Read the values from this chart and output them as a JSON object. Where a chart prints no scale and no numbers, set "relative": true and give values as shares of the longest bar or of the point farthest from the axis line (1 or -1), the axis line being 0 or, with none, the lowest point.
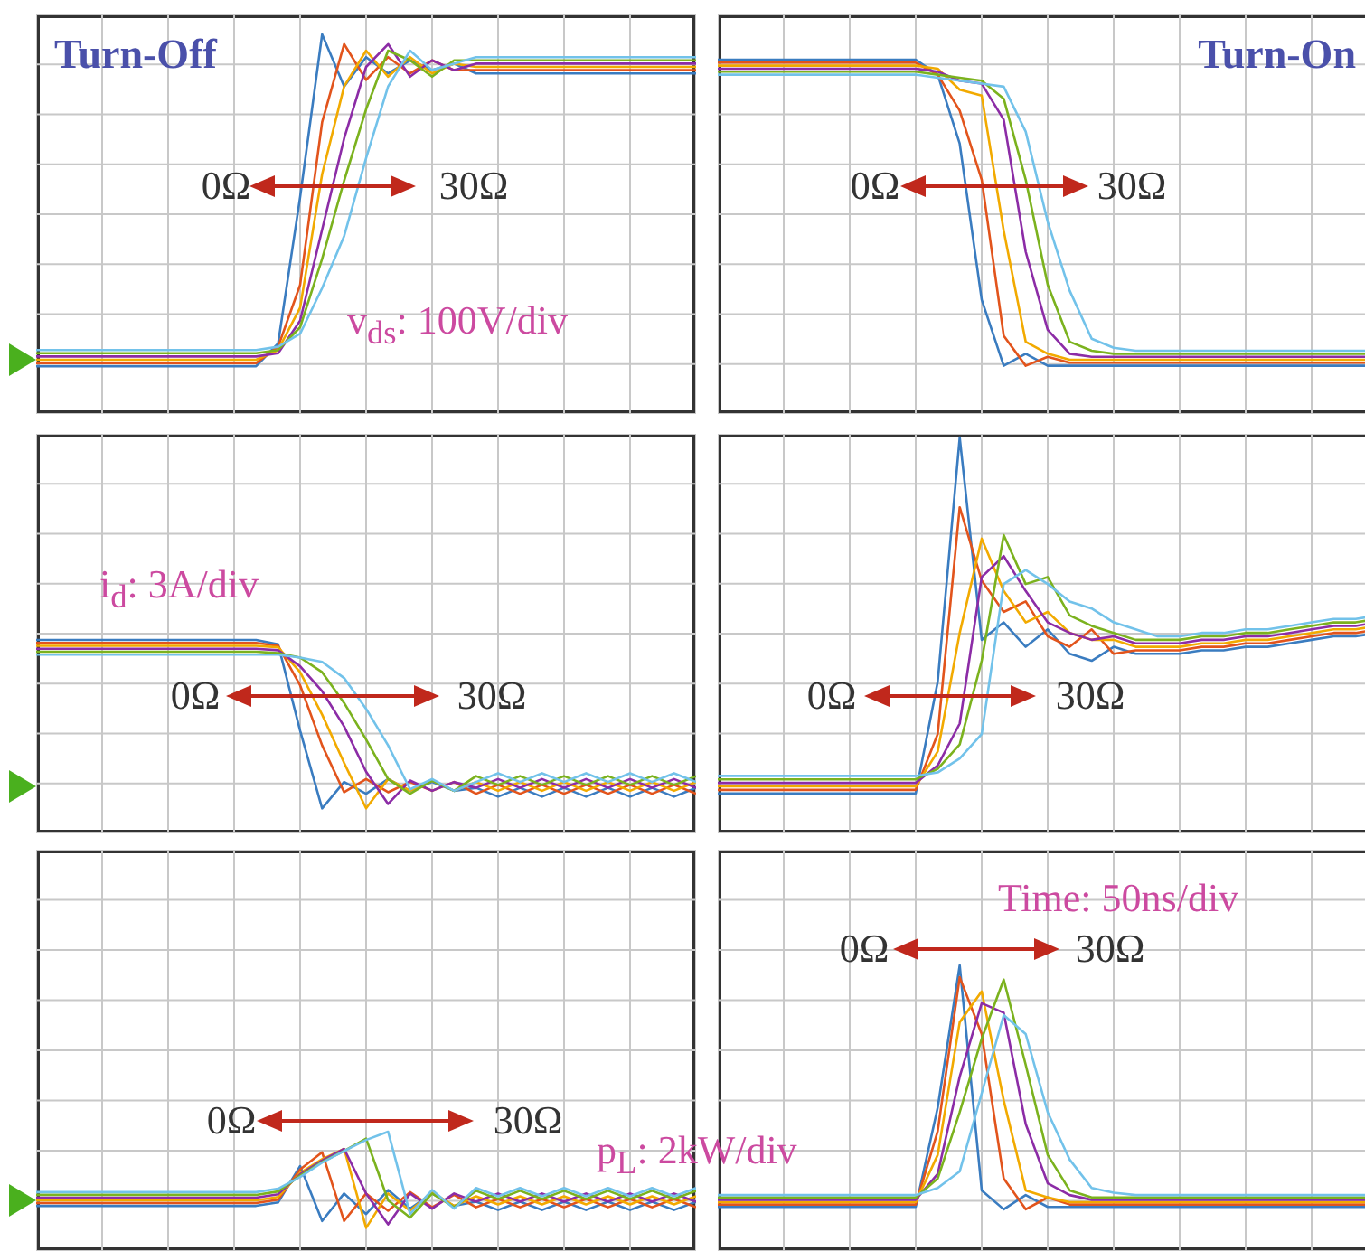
{
  "chart_data": [
    {
      "type": "line",
      "title": "Turn-Off",
      "relative": true,
      "grid": true,
      "tick_labels": false,
      "annotations": [
        "0Ω",
        "30Ω",
        "v$_{ds}$: 100V/div"
      ],
      "categories": [
        null,
        null,
        null,
        null,
        null,
        null,
        null,
        null,
        null,
        null,
        null,
        null,
        null,
        null,
        null,
        null,
        null,
        null,
        null,
        null,
        null,
        null,
        null,
        null,
        null,
        null,
        null,
        null,
        null,
        null,
        null
      ],
      "series": [
        {
          "color": "#3a7cc0",
          "values": [
            -0.02,
            -0.02,
            -0.02,
            -0.02,
            -0.02,
            -0.02,
            -0.02,
            -0.02,
            -0.02,
            -0.02,
            -0.02,
            0.05,
            0.5,
            1,
            0.84,
            0.93,
            0.88,
            0.92,
            0.89,
            0.91,
            0.88,
            0.88,
            0.88,
            0.88,
            0.88,
            0.88,
            0.88,
            0.88,
            0.88,
            0.88,
            0.88
          ]
        },
        {
          "color": "#e2541c",
          "values": [
            -0.01,
            -0.01,
            -0.01,
            -0.01,
            -0.01,
            -0.01,
            -0.01,
            -0.01,
            -0.01,
            -0.01,
            -0.01,
            0.04,
            0.23,
            0.73,
            0.97,
            0.86,
            0.93,
            0.88,
            0.92,
            0.89,
            0.89,
            0.89,
            0.89,
            0.89,
            0.89,
            0.89,
            0.89,
            0.89,
            0.89,
            0.89,
            0.89
          ]
        },
        {
          "color": "#f2aa00",
          "values": [
            0,
            0,
            0,
            0,
            0,
            0,
            0,
            0,
            0,
            0,
            0,
            0.03,
            0.16,
            0.57,
            0.84,
            0.95,
            0.87,
            0.93,
            0.88,
            0.91,
            0.9,
            0.9,
            0.9,
            0.9,
            0.9,
            0.9,
            0.9,
            0.9,
            0.9,
            0.9,
            0.9
          ]
        },
        {
          "color": "#8c2ca6",
          "values": [
            0.01,
            0.01,
            0.01,
            0.01,
            0.01,
            0.01,
            0.01,
            0.01,
            0.01,
            0.01,
            0.01,
            0.02,
            0.12,
            0.4,
            0.68,
            0.9,
            0.97,
            0.87,
            0.92,
            0.89,
            0.91,
            0.91,
            0.91,
            0.91,
            0.91,
            0.91,
            0.91,
            0.91,
            0.91,
            0.91,
            0.91
          ]
        },
        {
          "color": "#7bb21e",
          "values": [
            0.02,
            0.02,
            0.02,
            0.02,
            0.02,
            0.02,
            0.02,
            0.02,
            0.02,
            0.02,
            0.02,
            0.03,
            0.1,
            0.31,
            0.55,
            0.77,
            0.95,
            0.92,
            0.87,
            0.92,
            0.92,
            0.92,
            0.92,
            0.92,
            0.92,
            0.92,
            0.92,
            0.92,
            0.92,
            0.92,
            0.92
          ]
        },
        {
          "color": "#72c2ea",
          "values": [
            0.03,
            0.03,
            0.03,
            0.03,
            0.03,
            0.03,
            0.03,
            0.03,
            0.03,
            0.03,
            0.03,
            0.04,
            0.08,
            0.22,
            0.38,
            0.62,
            0.84,
            0.95,
            0.89,
            0.91,
            0.93,
            0.93,
            0.93,
            0.93,
            0.93,
            0.93,
            0.93,
            0.93,
            0.93,
            0.93,
            0.93
          ]
        }
      ]
    },
    {
      "type": "line",
      "title": "Turn-On",
      "relative": true,
      "grid": true,
      "tick_labels": false,
      "annotations": [
        "0Ω",
        "30Ω"
      ],
      "categories": [
        null,
        null,
        null,
        null,
        null,
        null,
        null,
        null,
        null,
        null,
        null,
        null,
        null,
        null,
        null,
        null,
        null,
        null,
        null,
        null,
        null,
        null,
        null,
        null,
        null,
        null,
        null,
        null,
        null,
        null,
        null
      ],
      "series": [
        {
          "color": "#3a7cc0",
          "values": [
            1,
            1,
            1,
            1,
            1,
            1,
            1,
            1,
            1,
            1,
            0.95,
            0.72,
            0.2,
            -0.02,
            0.02,
            -0.02,
            -0.02,
            -0.02,
            -0.02,
            -0.02,
            -0.02,
            -0.02,
            -0.02,
            -0.02,
            -0.02,
            -0.02,
            -0.02,
            -0.02,
            -0.02,
            -0.02,
            -0.02
          ]
        },
        {
          "color": "#e2541c",
          "values": [
            0.99,
            0.99,
            0.99,
            0.99,
            0.99,
            0.99,
            0.99,
            0.99,
            0.99,
            0.99,
            0.95,
            0.83,
            0.6,
            0.08,
            -0.02,
            0.01,
            -0.01,
            -0.01,
            -0.01,
            -0.01,
            -0.01,
            -0.01,
            -0.01,
            -0.01,
            -0.01,
            -0.01,
            -0.01,
            -0.01,
            -0.01,
            -0.01,
            -0.01
          ]
        },
        {
          "color": "#f2aa00",
          "values": [
            0.98,
            0.98,
            0.98,
            0.98,
            0.98,
            0.98,
            0.98,
            0.98,
            0.98,
            0.98,
            0.97,
            0.9,
            0.88,
            0.43,
            0.06,
            0.02,
            0,
            0,
            0,
            0,
            0,
            0,
            0,
            0,
            0,
            0,
            0,
            0,
            0,
            0,
            0
          ]
        },
        {
          "color": "#8c2ca6",
          "values": [
            0.97,
            0.97,
            0.97,
            0.97,
            0.97,
            0.97,
            0.97,
            0.97,
            0.97,
            0.97,
            0.96,
            0.93,
            0.92,
            0.8,
            0.36,
            0.1,
            0.02,
            0.01,
            0.01,
            0.01,
            0.01,
            0.01,
            0.01,
            0.01,
            0.01,
            0.01,
            0.01,
            0.01,
            0.01,
            0.01,
            0.01
          ]
        },
        {
          "color": "#7bb21e",
          "values": [
            0.96,
            0.96,
            0.96,
            0.96,
            0.96,
            0.96,
            0.96,
            0.96,
            0.96,
            0.96,
            0.95,
            0.94,
            0.93,
            0.87,
            0.6,
            0.25,
            0.06,
            0.03,
            0.02,
            0.02,
            0.02,
            0.02,
            0.02,
            0.02,
            0.02,
            0.02,
            0.02,
            0.02,
            0.02,
            0.02,
            0.02
          ]
        },
        {
          "color": "#72c2ea",
          "values": [
            0.95,
            0.95,
            0.95,
            0.95,
            0.95,
            0.95,
            0.95,
            0.95,
            0.95,
            0.95,
            0.94,
            0.93,
            0.92,
            0.91,
            0.76,
            0.46,
            0.23,
            0.07,
            0.04,
            0.03,
            0.03,
            0.03,
            0.03,
            0.03,
            0.03,
            0.03,
            0.03,
            0.03,
            0.03,
            0.03,
            0.03
          ]
        }
      ]
    },
    {
      "type": "line",
      "relative": true,
      "grid": true,
      "tick_labels": false,
      "annotations": [
        "i$_{d}$: 3A/div",
        "0Ω",
        "30Ω"
      ],
      "categories": [
        null,
        null,
        null,
        null,
        null,
        null,
        null,
        null,
        null,
        null,
        null,
        null,
        null,
        null,
        null,
        null,
        null,
        null,
        null,
        null,
        null,
        null,
        null,
        null,
        null,
        null,
        null,
        null,
        null,
        null,
        null
      ],
      "series": [
        {
          "color": "#3a7cc0",
          "values": [
            1,
            1,
            1,
            1,
            1,
            1,
            1,
            1,
            1,
            1,
            1,
            0.97,
            0.38,
            -0.15,
            0.03,
            -0.05,
            0.05,
            -0.03,
            0.03,
            -0.03,
            -0.01,
            -0.07,
            -0.01,
            -0.07,
            -0.01,
            -0.07,
            -0.01,
            -0.07,
            -0.01,
            -0.07,
            -0.01
          ]
        },
        {
          "color": "#e2541c",
          "values": [
            0.98,
            0.98,
            0.98,
            0.98,
            0.98,
            0.98,
            0.98,
            0.98,
            0.98,
            0.98,
            0.98,
            0.96,
            0.69,
            0.28,
            -0.04,
            0.05,
            -0.04,
            0.03,
            -0.03,
            0.03,
            -0.05,
            0.01,
            -0.05,
            0.01,
            -0.05,
            0.01,
            -0.05,
            0.01,
            -0.05,
            0.01,
            -0.05
          ]
        },
        {
          "color": "#f2aa00",
          "values": [
            0.96,
            0.96,
            0.96,
            0.96,
            0.96,
            0.96,
            0.96,
            0.96,
            0.96,
            0.96,
            0.96,
            0.95,
            0.78,
            0.49,
            0.16,
            -0.15,
            0.05,
            -0.03,
            0.04,
            -0.03,
            0.03,
            -0.03,
            0.03,
            -0.03,
            0.03,
            -0.03,
            0.03,
            -0.03,
            0.03,
            -0.03,
            0.03
          ]
        },
        {
          "color": "#8c2ca6",
          "values": [
            0.94,
            0.94,
            0.94,
            0.94,
            0.94,
            0.94,
            0.94,
            0.94,
            0.94,
            0.94,
            0.94,
            0.93,
            0.82,
            0.65,
            0.41,
            0.1,
            -0.12,
            0.04,
            -0.03,
            0.03,
            -0.01,
            0.05,
            -0.01,
            0.05,
            -0.01,
            0.05,
            -0.01,
            0.05,
            -0.01,
            0.05,
            -0.01
          ]
        },
        {
          "color": "#7bb21e",
          "values": [
            0.92,
            0.92,
            0.92,
            0.92,
            0.92,
            0.92,
            0.92,
            0.92,
            0.92,
            0.92,
            0.92,
            0.91,
            0.88,
            0.78,
            0.57,
            0.32,
            0.05,
            -0.05,
            0.04,
            -0.03,
            0.07,
            0.01,
            0.07,
            0.01,
            0.07,
            0.01,
            0.07,
            0.01,
            0.07,
            0.01,
            0.07
          ]
        },
        {
          "color": "#72c2ea",
          "values": [
            0.9,
            0.9,
            0.9,
            0.9,
            0.9,
            0.9,
            0.9,
            0.9,
            0.9,
            0.9,
            0.9,
            0.9,
            0.88,
            0.85,
            0.74,
            0.53,
            0.28,
            -0.02,
            0.05,
            -0.03,
            0.03,
            0.09,
            0.03,
            0.09,
            0.03,
            0.09,
            0.03,
            0.09,
            0.03,
            0.09,
            0.03
          ]
        }
      ]
    },
    {
      "type": "line",
      "relative": true,
      "grid": true,
      "tick_labels": false,
      "annotations": [
        "0Ω",
        "30Ω"
      ],
      "categories": [
        null,
        null,
        null,
        null,
        null,
        null,
        null,
        null,
        null,
        null,
        null,
        null,
        null,
        null,
        null,
        null,
        null,
        null,
        null,
        null,
        null,
        null,
        null,
        null,
        null,
        null,
        null,
        null,
        null,
        null,
        null
      ],
      "series": [
        {
          "color": "#3a7cc0",
          "values": [
            -0.02,
            -0.02,
            -0.02,
            -0.02,
            -0.02,
            -0.02,
            -0.02,
            -0.02,
            -0.02,
            -0.02,
            0.3,
            1,
            0.42,
            0.47,
            0.4,
            0.45,
            0.38,
            0.36,
            0.4,
            0.38,
            0.38,
            0.38,
            0.39,
            0.39,
            0.4,
            0.4,
            0.41,
            0.42,
            0.43,
            0.43,
            0.44
          ]
        },
        {
          "color": "#e2541c",
          "values": [
            -0.01,
            -0.01,
            -0.01,
            -0.01,
            -0.01,
            -0.01,
            -0.01,
            -0.01,
            -0.01,
            -0.01,
            0.15,
            0.8,
            0.59,
            0.5,
            0.53,
            0.43,
            0.4,
            0.45,
            0.38,
            0.39,
            0.39,
            0.39,
            0.4,
            0.4,
            0.41,
            0.41,
            0.42,
            0.43,
            0.44,
            0.44,
            0.45
          ]
        },
        {
          "color": "#f2aa00",
          "values": [
            0,
            0,
            0,
            0,
            0,
            0,
            0,
            0,
            0,
            0,
            0.1,
            0.44,
            0.71,
            0.56,
            0.47,
            0.5,
            0.44,
            0.42,
            0.42,
            0.4,
            0.4,
            0.4,
            0.41,
            0.41,
            0.42,
            0.42,
            0.43,
            0.44,
            0.45,
            0.45,
            0.46
          ]
        },
        {
          "color": "#8c2ca6",
          "values": [
            0.01,
            0.01,
            0.01,
            0.01,
            0.01,
            0.01,
            0.01,
            0.01,
            0.01,
            0.01,
            0.06,
            0.18,
            0.6,
            0.66,
            0.56,
            0.47,
            0.44,
            0.42,
            0.43,
            0.41,
            0.41,
            0.41,
            0.42,
            0.42,
            0.43,
            0.43,
            0.44,
            0.45,
            0.46,
            0.46,
            0.47
          ]
        },
        {
          "color": "#7bb21e",
          "values": [
            0.02,
            0.02,
            0.02,
            0.02,
            0.02,
            0.02,
            0.02,
            0.02,
            0.02,
            0.02,
            0.05,
            0.12,
            0.36,
            0.72,
            0.58,
            0.6,
            0.49,
            0.46,
            0.44,
            0.42,
            0.42,
            0.42,
            0.43,
            0.43,
            0.44,
            0.44,
            0.45,
            0.46,
            0.47,
            0.47,
            0.48
          ]
        },
        {
          "color": "#72c2ea",
          "values": [
            0.03,
            0.03,
            0.03,
            0.03,
            0.03,
            0.03,
            0.03,
            0.03,
            0.03,
            0.03,
            0.04,
            0.08,
            0.15,
            0.58,
            0.62,
            0.58,
            0.53,
            0.51,
            0.47,
            0.45,
            0.43,
            0.43,
            0.44,
            0.44,
            0.45,
            0.45,
            0.46,
            0.47,
            0.48,
            0.48,
            0.49
          ]
        }
      ]
    },
    {
      "type": "line",
      "relative": true,
      "grid": true,
      "tick_labels": false,
      "annotations": [
        "0Ω",
        "30Ω",
        "p$_{L}$: 2kW/div"
      ],
      "categories": [
        null,
        null,
        null,
        null,
        null,
        null,
        null,
        null,
        null,
        null,
        null,
        null,
        null,
        null,
        null,
        null,
        null,
        null,
        null,
        null,
        null,
        null,
        null,
        null,
        null,
        null,
        null,
        null,
        null,
        null,
        null
      ],
      "series": [
        {
          "color": "#3a7cc0",
          "values": [
            -0.08,
            -0.08,
            -0.08,
            -0.08,
            -0.08,
            -0.08,
            -0.08,
            -0.08,
            -0.08,
            -0.08,
            -0.08,
            -0.03,
            0.5,
            -0.3,
            0.1,
            -0.2,
            0.15,
            -0.12,
            0.1,
            -0.08,
            -0.02,
            -0.14,
            -0.02,
            -0.14,
            -0.02,
            -0.14,
            -0.02,
            -0.14,
            -0.02,
            -0.14,
            -0.02
          ]
        },
        {
          "color": "#e2541c",
          "values": [
            -0.04,
            -0.04,
            -0.04,
            -0.04,
            -0.04,
            -0.04,
            -0.04,
            -0.04,
            -0.04,
            -0.04,
            -0.04,
            0.01,
            0.45,
            0.7,
            -0.3,
            0.1,
            -0.15,
            0.12,
            -0.1,
            0.08,
            -0.1,
            0.02,
            -0.1,
            0.02,
            -0.1,
            0.02,
            -0.1,
            0.02,
            -0.1,
            0.02,
            -0.1
          ]
        },
        {
          "color": "#f2aa00",
          "values": [
            0,
            0,
            0,
            0,
            0,
            0,
            0,
            0,
            0,
            0,
            0,
            0.05,
            0.4,
            0.6,
            0.75,
            -0.4,
            0.1,
            -0.15,
            0.12,
            -0.08,
            0.06,
            -0.06,
            0.06,
            -0.06,
            0.06,
            -0.06,
            0.06,
            -0.06,
            0.06,
            -0.06,
            0.06
          ]
        },
        {
          "color": "#8c2ca6",
          "values": [
            0.04,
            0.04,
            0.04,
            0.04,
            0.04,
            0.04,
            0.04,
            0.04,
            0.04,
            0.04,
            0.04,
            0.09,
            0.38,
            0.58,
            0.75,
            0.1,
            -0.35,
            0.1,
            -0.12,
            0.1,
            -0.02,
            0.1,
            -0.02,
            0.1,
            -0.02,
            0.1,
            -0.02,
            0.1,
            -0.02,
            0.1,
            -0.02
          ]
        },
        {
          "color": "#7bb21e",
          "values": [
            0.08,
            0.08,
            0.08,
            0.08,
            0.08,
            0.08,
            0.08,
            0.08,
            0.08,
            0.08,
            0.08,
            0.13,
            0.36,
            0.56,
            0.72,
            0.9,
            0,
            -0.25,
            0.1,
            -0.1,
            0.14,
            0.02,
            0.14,
            0.02,
            0.14,
            0.02,
            0.14,
            0.02,
            0.14,
            0.02,
            0.14
          ]
        },
        {
          "color": "#72c2ea",
          "values": [
            0.12,
            0.12,
            0.12,
            0.12,
            0.12,
            0.12,
            0.12,
            0.12,
            0.12,
            0.12,
            0.12,
            0.17,
            0.34,
            0.55,
            0.72,
            0.88,
            1,
            -0.2,
            0.15,
            -0.12,
            0.18,
            0.06,
            0.18,
            0.06,
            0.18,
            0.06,
            0.18,
            0.06,
            0.18,
            0.06,
            0.18
          ]
        }
      ]
    },
    {
      "type": "line",
      "relative": true,
      "grid": true,
      "tick_labels": false,
      "annotations": [
        "Time: 50ns/div",
        "0Ω",
        "30Ω"
      ],
      "categories": [
        null,
        null,
        null,
        null,
        null,
        null,
        null,
        null,
        null,
        null,
        null,
        null,
        null,
        null,
        null,
        null,
        null,
        null,
        null,
        null,
        null,
        null,
        null,
        null,
        null,
        null,
        null,
        null,
        null,
        null,
        null
      ],
      "series": [
        {
          "color": "#3a7cc0",
          "values": [
            -0.02,
            -0.02,
            -0.02,
            -0.02,
            -0.02,
            -0.02,
            -0.02,
            -0.02,
            -0.02,
            -0.02,
            0.4,
            1,
            0.05,
            -0.03,
            0.03,
            -0.02,
            -0.02,
            -0.02,
            -0.02,
            -0.02,
            -0.02,
            -0.02,
            -0.02,
            -0.02,
            -0.02,
            -0.02,
            -0.02,
            -0.02,
            -0.02,
            -0.02,
            -0.02
          ]
        },
        {
          "color": "#e2541c",
          "values": [
            -0.01,
            -0.01,
            -0.01,
            -0.01,
            -0.01,
            -0.01,
            -0.01,
            -0.01,
            -0.01,
            -0.01,
            0.3,
            0.95,
            0.71,
            0.1,
            -0.03,
            0.02,
            -0.01,
            -0.01,
            -0.01,
            -0.01,
            -0.01,
            -0.01,
            -0.01,
            -0.01,
            -0.01,
            -0.01,
            -0.01,
            -0.01,
            -0.01,
            -0.01,
            -0.01
          ]
        },
        {
          "color": "#f2aa00",
          "values": [
            0,
            0,
            0,
            0,
            0,
            0,
            0,
            0,
            0,
            0,
            0.2,
            0.76,
            0.89,
            0.43,
            0.05,
            0.02,
            0,
            0,
            0,
            0,
            0,
            0,
            0,
            0,
            0,
            0,
            0,
            0,
            0,
            0,
            0
          ]
        },
        {
          "color": "#8c2ca6",
          "values": [
            0.01,
            0.01,
            0.01,
            0.01,
            0.01,
            0.01,
            0.01,
            0.01,
            0.01,
            0.01,
            0.12,
            0.53,
            0.84,
            0.8,
            0.33,
            0.08,
            0.03,
            0.01,
            0.01,
            0.01,
            0.01,
            0.01,
            0.01,
            0.01,
            0.01,
            0.01,
            0.01,
            0.01,
            0.01,
            0.01,
            0.01
          ]
        },
        {
          "color": "#7bb21e",
          "values": [
            0.02,
            0.02,
            0.02,
            0.02,
            0.02,
            0.02,
            0.02,
            0.02,
            0.02,
            0.02,
            0.1,
            0.38,
            0.69,
            0.94,
            0.58,
            0.2,
            0.05,
            0.02,
            0.02,
            0.02,
            0.02,
            0.02,
            0.02,
            0.02,
            0.02,
            0.02,
            0.02,
            0.02,
            0.02,
            0.02,
            0.02
          ]
        },
        {
          "color": "#72c2ea",
          "values": [
            0.03,
            0.03,
            0.03,
            0.03,
            0.03,
            0.03,
            0.03,
            0.03,
            0.03,
            0.03,
            0.06,
            0.13,
            0.46,
            0.79,
            0.71,
            0.38,
            0.18,
            0.06,
            0.04,
            0.03,
            0.03,
            0.03,
            0.03,
            0.03,
            0.03,
            0.03,
            0.03,
            0.03,
            0.03,
            0.03,
            0.03
          ]
        }
      ]
    }
  ]
}
